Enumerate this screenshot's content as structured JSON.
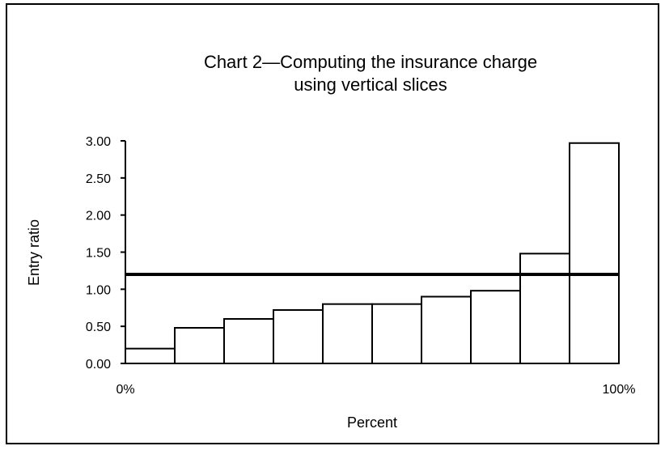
{
  "chart_data": {
    "type": "histogram",
    "title": [
      "Chart 2—Computing the insurance charge",
      "using vertical slices"
    ],
    "y_label": "Entry ratio",
    "x_label": "Percent",
    "bins": [
      0,
      10,
      20,
      30,
      40,
      50,
      60,
      70,
      80,
      90,
      100
    ],
    "values": [
      0.2,
      0.48,
      0.6,
      0.72,
      0.8,
      0.8,
      0.9,
      0.98,
      1.48,
      2.97
    ],
    "hline": 1.2,
    "xlim": [
      0,
      100
    ],
    "xticks": [
      {
        "value": 0,
        "label": "0%"
      },
      {
        "value": 100,
        "label": "100%"
      }
    ],
    "ylim": [
      0,
      3
    ],
    "yticks": [
      {
        "value": 0,
        "label": "0.00"
      },
      {
        "value": 0.5,
        "label": "0.50"
      },
      {
        "value": 1,
        "label": "1.00"
      },
      {
        "value": 1.5,
        "label": "1.50"
      },
      {
        "value": 2,
        "label": "2.00"
      },
      {
        "value": 2.5,
        "label": "2.50"
      },
      {
        "value": 3,
        "label": "3.00"
      }
    ],
    "color": "#ffffff",
    "edge_color": "#000000"
  }
}
